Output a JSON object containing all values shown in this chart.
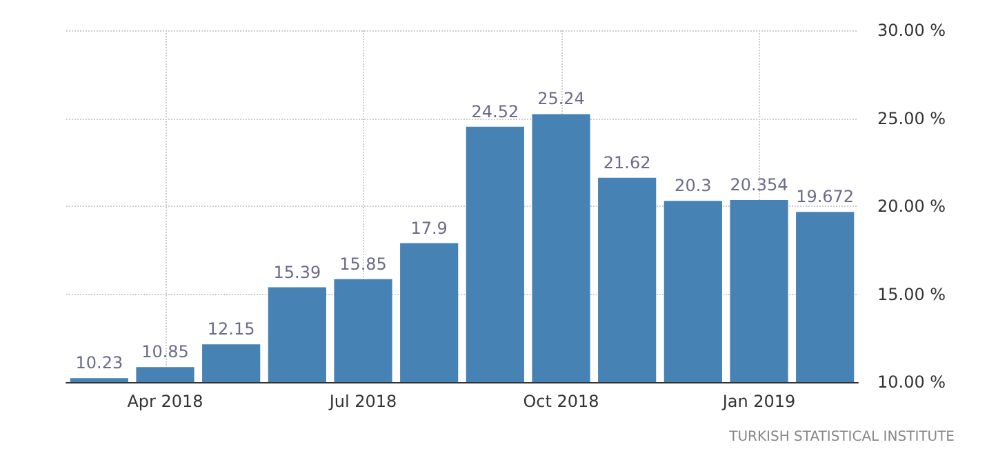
{
  "chart_data": {
    "type": "bar",
    "categories": [
      null,
      "Apr 2018",
      null,
      null,
      "Jul 2018",
      null,
      null,
      "Oct 2018",
      null,
      null,
      "Jan 2019",
      null
    ],
    "values": [
      10.23,
      10.85,
      12.15,
      15.39,
      15.85,
      17.9,
      24.52,
      25.24,
      21.62,
      20.3,
      20.354,
      19.672
    ],
    "color": "#4682b4",
    "ylim": [
      10,
      30
    ],
    "yticks": [
      {
        "value": 10,
        "label": "10.00 %"
      },
      {
        "value": 15,
        "label": "15.00 %"
      },
      {
        "value": 20,
        "label": "20.00 %"
      },
      {
        "value": 25,
        "label": "25.00 %"
      },
      {
        "value": 30,
        "label": "30.00 %"
      }
    ],
    "grid": true,
    "data_labels": true,
    "annotations": [
      "TURKISH STATISTICAL INSTITUTE"
    ]
  }
}
